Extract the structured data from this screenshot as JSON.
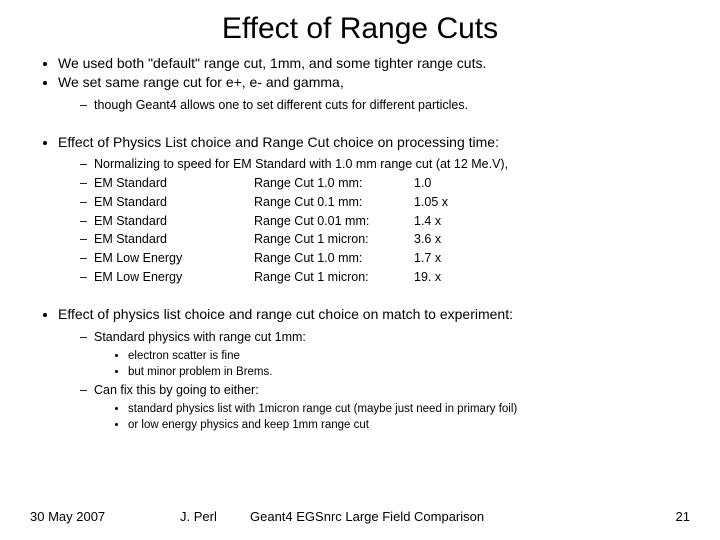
{
  "title": "Effect of Range Cuts",
  "bullets": {
    "b1": "We used both \"default\" range cut, 1mm, and some tighter range cuts.",
    "b2": "We set same range cut for e+, e- and gamma,",
    "b2_sub1": "though Geant4 allows one to set different cuts for different particles.",
    "b3": "Effect of Physics List choice and Range Cut choice on processing time:",
    "b3_sub0": "Normalizing to speed for EM Standard with 1.0 mm range cut (at 12 Me.V),",
    "b4": "Effect of physics list choice and range cut choice on match to experiment:",
    "b4_sub1": "Standard physics with range cut 1mm:",
    "b4_sub1_a": "electron scatter is fine",
    "b4_sub1_b": "but minor problem in Brems.",
    "b4_sub2": "Can fix this by going to either:",
    "b4_sub2_a": "standard physics list with 1micron range cut (maybe just need in primary foil)",
    "b4_sub2_b": "or low energy physics and keep 1mm range cut"
  },
  "table": {
    "rows": [
      {
        "list": "EM Standard",
        "cut": "Range Cut 1.0 mm:",
        "val": "1.0"
      },
      {
        "list": "EM Standard",
        "cut": "Range Cut 0.1 mm:",
        "val": "1.05 x"
      },
      {
        "list": "EM Standard",
        "cut": "Range Cut 0.01 mm:",
        "val": "1.4 x"
      },
      {
        "list": "EM Standard",
        "cut": "Range Cut 1 micron:",
        "val": "3.6 x"
      },
      {
        "list": "EM Low Energy",
        "cut": "Range Cut 1.0 mm:",
        "val": "1.7 x"
      },
      {
        "list": "EM Low Energy",
        "cut": "Range Cut 1 micron:",
        "val": "19. x"
      }
    ]
  },
  "footer": {
    "date": "30 May 2007",
    "author": "J. Perl",
    "title": "Geant4 EGSnrc Large Field Comparison",
    "page": "21"
  }
}
